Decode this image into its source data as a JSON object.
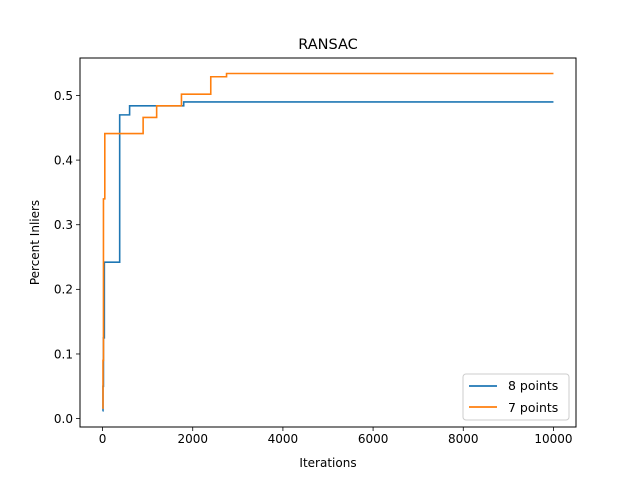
{
  "chart_data": {
    "type": "line",
    "title": "RANSAC",
    "xlabel": "Iterations",
    "ylabel": "Percent Inliers",
    "xlim": [
      -500,
      10500
    ],
    "ylim": [
      -0.013,
      0.558
    ],
    "xticks": [
      0,
      2000,
      4000,
      6000,
      8000,
      10000
    ],
    "xtick_labels": [
      "0",
      "2000",
      "4000",
      "6000",
      "8000",
      "10000"
    ],
    "yticks": [
      0.0,
      0.1,
      0.2,
      0.3,
      0.4,
      0.5
    ],
    "ytick_labels": [
      "0.0",
      "0.1",
      "0.2",
      "0.3",
      "0.4",
      "0.5"
    ],
    "grid": false,
    "legend_position": "lower-right",
    "step": true,
    "series": [
      {
        "name": "8 points",
        "color": "#1f77b4",
        "x": [
          0,
          10,
          20,
          40,
          380,
          600,
          1800,
          10000
        ],
        "y": [
          0.012,
          0.05,
          0.125,
          0.242,
          0.47,
          0.484,
          0.49,
          0.49
        ]
      },
      {
        "name": "7 points",
        "color": "#ff7f0e",
        "x": [
          0,
          10,
          20,
          50,
          900,
          1200,
          1750,
          2400,
          2750,
          10000
        ],
        "y": [
          0.016,
          0.09,
          0.34,
          0.441,
          0.466,
          0.484,
          0.502,
          0.529,
          0.534,
          0.534
        ]
      }
    ]
  }
}
